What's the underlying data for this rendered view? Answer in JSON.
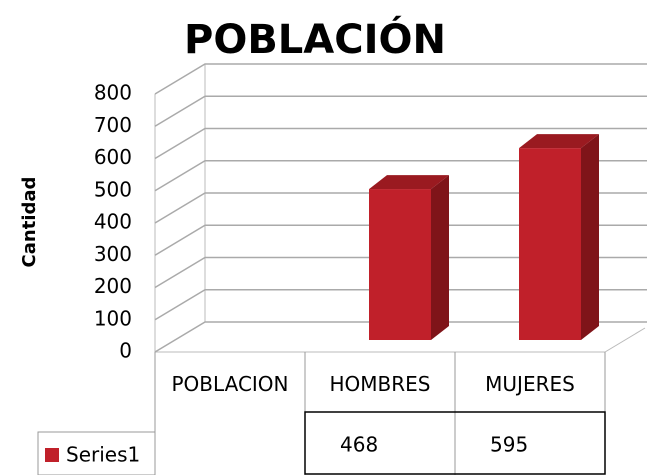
{
  "chart_data": {
    "type": "bar3d",
    "title": "POBLACIÓN",
    "y_label": "Cantidad",
    "categories": [
      "POBLACION",
      "HOMBRES",
      "MUJERES"
    ],
    "series": [
      {
        "name": "Series1",
        "color": "#c0202a",
        "values": [
          null,
          468,
          595
        ]
      }
    ],
    "ylim": [
      0,
      800
    ],
    "yticks": [
      0,
      100,
      200,
      300,
      400,
      500,
      600,
      700,
      800
    ],
    "grid": true,
    "legend": "bottom-left"
  }
}
